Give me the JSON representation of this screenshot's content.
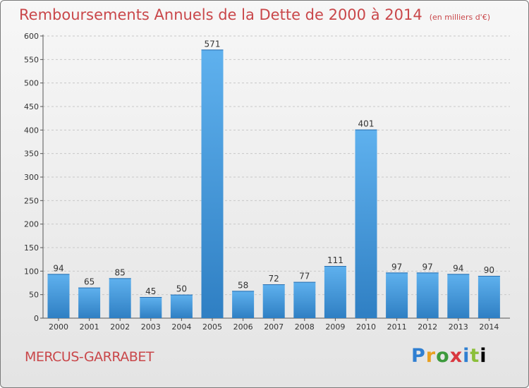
{
  "header": {
    "title": "Remboursements Annuels de la Dette de 2000 à 2014",
    "unit": "(en milliers d'€)"
  },
  "footer": {
    "commune": "MERCUS-GARRABET",
    "logo_letters": [
      "P",
      "r",
      "o",
      "x",
      "i",
      "t",
      "i"
    ]
  },
  "colors": {
    "title": "#c9474a",
    "bar_top": "#5fb1ee",
    "bar_bottom": "#2f7fc3"
  },
  "chart_data": {
    "type": "bar",
    "categories": [
      "2000",
      "2001",
      "2002",
      "2003",
      "2004",
      "2005",
      "2006",
      "2007",
      "2008",
      "2009",
      "2010",
      "2011",
      "2012",
      "2013",
      "2014"
    ],
    "values": [
      94,
      65,
      85,
      45,
      50,
      571,
      58,
      72,
      77,
      111,
      401,
      97,
      97,
      94,
      90
    ],
    "ylim": [
      0,
      600
    ],
    "yticks": [
      0,
      50,
      100,
      150,
      200,
      250,
      300,
      350,
      400,
      450,
      500,
      550,
      600
    ],
    "grid": "horizontal dashed",
    "data_labels": true
  }
}
